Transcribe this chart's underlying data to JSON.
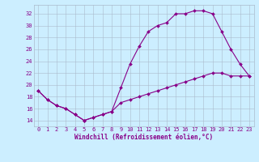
{
  "xlabel": "Windchill (Refroidissement éolien,°C)",
  "background_color": "#cceeff",
  "line_color": "#880088",
  "xlim": [
    -0.5,
    23.5
  ],
  "ylim": [
    13,
    33.5
  ],
  "yticks": [
    14,
    16,
    18,
    20,
    22,
    24,
    26,
    28,
    30,
    32
  ],
  "xticks": [
    0,
    1,
    2,
    3,
    4,
    5,
    6,
    7,
    8,
    9,
    10,
    11,
    12,
    13,
    14,
    15,
    16,
    17,
    18,
    19,
    20,
    21,
    22,
    23
  ],
  "series1_x": [
    0,
    1,
    2,
    3,
    4,
    5,
    6,
    7,
    8,
    9,
    10,
    11,
    12,
    13,
    14,
    15,
    16,
    17,
    18,
    19,
    20,
    21,
    22,
    23
  ],
  "series1_y": [
    19,
    17.5,
    16.5,
    16,
    15,
    14,
    14.5,
    15,
    15.5,
    19.5,
    23.5,
    26.5,
    29,
    30,
    30.5,
    32,
    32,
    32.5,
    32.5,
    32,
    29,
    26,
    23.5,
    21.5
  ],
  "series2_x": [
    0,
    1,
    2,
    3,
    4,
    5,
    6,
    7,
    8,
    9,
    10,
    11,
    12,
    13,
    14,
    15,
    16,
    17,
    18,
    19,
    20,
    21,
    22,
    23
  ],
  "series2_y": [
    19,
    17.5,
    16.5,
    16,
    15,
    14,
    14.5,
    15,
    15.5,
    17,
    17.5,
    18,
    18.5,
    19,
    19.5,
    20,
    20.5,
    21,
    21.5,
    22,
    22,
    21.5,
    21.5,
    21.5
  ],
  "grid_color": "#aabbcc",
  "marker_size": 2.0,
  "linewidth": 0.8,
  "tick_fontsize": 5.0,
  "xlabel_fontsize": 5.5
}
